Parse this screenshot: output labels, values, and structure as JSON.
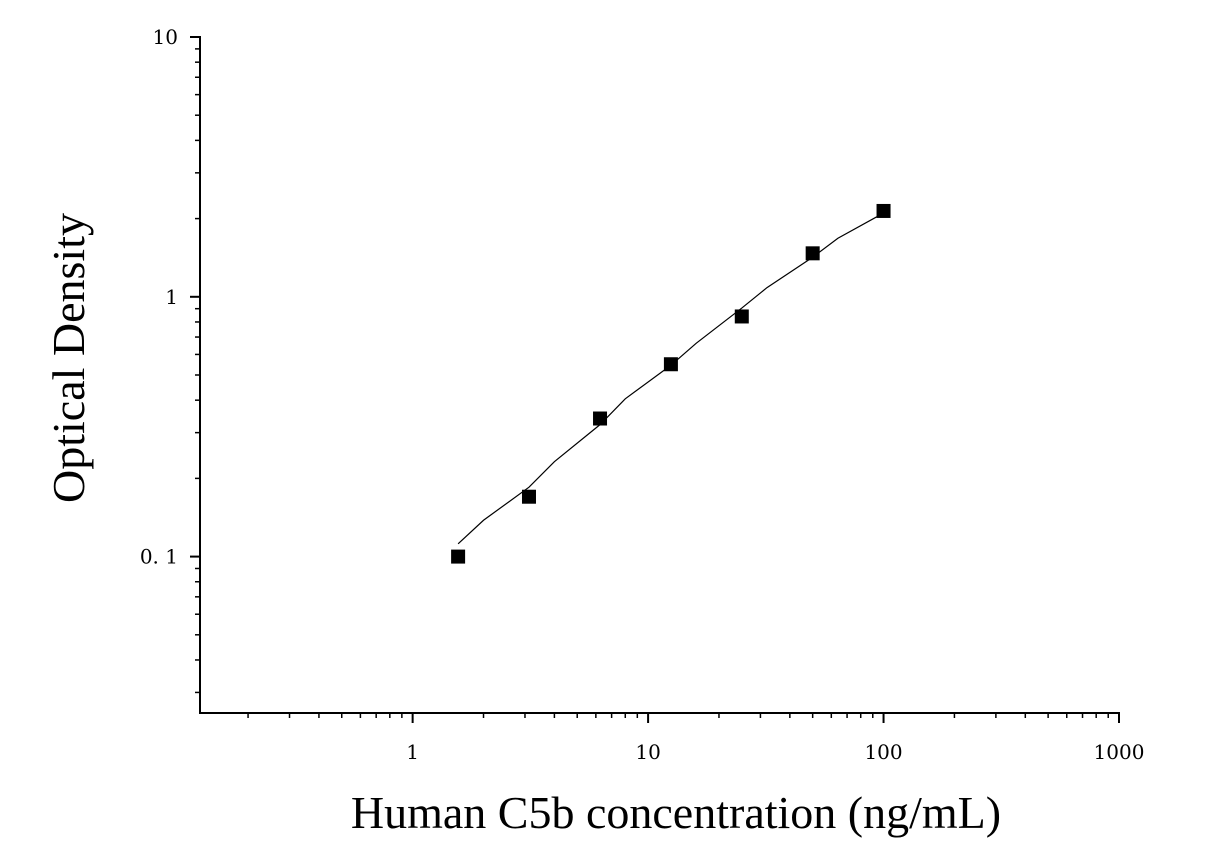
{
  "chart_data": {
    "type": "scatter",
    "title": "",
    "xlabel": "Human C5b concentration (ng/mL)",
    "ylabel": "Optical Density",
    "x_scale": "log",
    "y_scale": "log",
    "xlim": [
      0.125,
      1000
    ],
    "ylim": [
      0.025,
      10
    ],
    "x_ticks": [
      {
        "value": 1,
        "label": "1"
      },
      {
        "value": 10,
        "label": "10"
      },
      {
        "value": 100,
        "label": "100"
      },
      {
        "value": 1000,
        "label": "1000"
      }
    ],
    "y_ticks": [
      {
        "value": 0.1,
        "label": "0. 1"
      },
      {
        "value": 1,
        "label": "1"
      },
      {
        "value": 10,
        "label": "10"
      }
    ],
    "grid": false,
    "series": [
      {
        "marker": "square",
        "color": "#000000",
        "x": [
          1.56,
          3.12,
          6.25,
          12.5,
          25,
          50,
          100
        ],
        "y": [
          0.1,
          0.17,
          0.34,
          0.55,
          0.84,
          1.47,
          2.14
        ]
      }
    ],
    "fit_line": {
      "color": "#000000",
      "x": [
        1.56,
        2,
        3.12,
        4,
        6.25,
        8,
        12.5,
        16,
        25,
        32,
        50,
        64,
        100
      ],
      "y": [
        0.112,
        0.138,
        0.185,
        0.232,
        0.322,
        0.405,
        0.545,
        0.662,
        0.905,
        1.085,
        1.42,
        1.68,
        2.1
      ]
    }
  }
}
